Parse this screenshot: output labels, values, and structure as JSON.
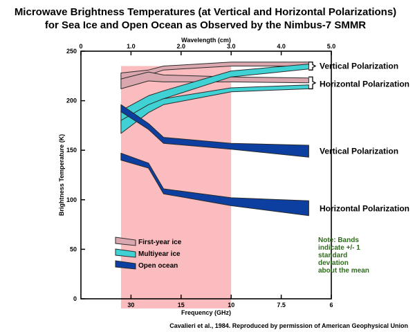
{
  "chart_data": {
    "type": "area",
    "title_lines": [
      "Microwave Brightness Temperatures (at Vertical and Horizontal Polarizations)",
      "for Sea Ice and Open Ocean as Observed by the Nimbus-7 SMMR"
    ],
    "xlabel_top": "Wavelength (cm)",
    "xlabel_bottom": "Frequency (GHz)",
    "ylabel": "Brightness Temperature (K)",
    "ylim": [
      0,
      250
    ],
    "wavelength_range_cm": [
      0,
      5
    ],
    "top_ticks": [
      "0",
      "1.0",
      "2.0",
      "3.0",
      "4.0",
      "5.0"
    ],
    "top_tick_values": [
      0,
      1,
      2,
      3,
      4,
      5
    ],
    "bottom_ticks": [
      "30",
      "15",
      "10",
      "7.5",
      "6"
    ],
    "bottom_tick_wavelengths": [
      1.0,
      2.0,
      3.0,
      4.0,
      5.0
    ],
    "y_ticks": [
      "0",
      "50",
      "100",
      "150",
      "200",
      "250"
    ],
    "y_tick_values": [
      0,
      50,
      100,
      150,
      200,
      250
    ],
    "highlight": {
      "from_wavelength": 0.8,
      "to_wavelength": 3.0,
      "color": "#fbbcbf"
    },
    "series": [
      {
        "name": "First-year ice",
        "polarization": "Vertical",
        "color": "#d9a7ad",
        "wavelength": [
          0.8,
          1.35,
          1.65,
          3.0,
          4.55
        ],
        "upper": [
          228,
          231,
          235,
          239,
          239
        ],
        "lower": [
          221,
          226,
          231,
          235,
          235
        ]
      },
      {
        "name": "First-year ice",
        "polarization": "Horizontal",
        "color": "#d9a7ad",
        "wavelength": [
          0.8,
          1.35,
          1.65,
          3.0,
          4.55
        ],
        "upper": [
          222,
          229,
          226,
          224,
          223
        ],
        "lower": [
          212,
          220,
          219,
          219,
          218
        ]
      },
      {
        "name": "Multiyear ice",
        "polarization": "Vertical",
        "color": "#3fd1d4",
        "wavelength": [
          0.8,
          1.35,
          1.65,
          3.0,
          4.55
        ],
        "upper": [
          190,
          205,
          210,
          230,
          237
        ],
        "lower": [
          177,
          195,
          202,
          224,
          232
        ]
      },
      {
        "name": "Multiyear ice",
        "polarization": "Horizontal",
        "color": "#3fd1d4",
        "wavelength": [
          0.8,
          1.35,
          1.65,
          3.0,
          4.55
        ],
        "upper": [
          180,
          196,
          202,
          213,
          216
        ],
        "lower": [
          167,
          188,
          196,
          209,
          212
        ]
      },
      {
        "name": "Open ocean",
        "polarization": "Vertical",
        "color": "#0d3fa0",
        "wavelength": [
          0.8,
          1.35,
          1.65,
          3.0,
          4.55
        ],
        "upper": [
          196,
          177,
          163,
          157,
          155
        ],
        "lower": [
          189,
          171,
          157,
          151,
          143
        ]
      },
      {
        "name": "Open ocean",
        "polarization": "Horizontal",
        "color": "#0d3fa0",
        "wavelength": [
          0.8,
          1.35,
          1.65,
          3.0,
          4.55
        ],
        "upper": [
          147,
          137,
          111,
          102,
          99
        ],
        "lower": [
          140,
          132,
          106,
          94,
          84
        ]
      }
    ],
    "annotations": {
      "right_labels": [
        {
          "text": "Vertical Polarization",
          "temperature": 235
        },
        {
          "text": "Horizontal Polarization",
          "temperature": 217
        },
        {
          "text": "Vertical Polarization",
          "temperature": 149
        },
        {
          "text": "Horizontal Polarization",
          "temperature": 91
        }
      ],
      "note_lines": [
        "Note: Bands",
        "indicate +/- 1",
        "standard",
        "deviation",
        "about the mean"
      ]
    },
    "legend": [
      {
        "label": "First-year ice",
        "color": "#d9a7ad"
      },
      {
        "label": "Multiyear ice",
        "color": "#3fd1d4"
      },
      {
        "label": "Open ocean",
        "color": "#0d3fa0"
      }
    ],
    "legend_placement": "lower-left",
    "grid": false
  },
  "credit": "Cavalieri et al., 1984. Reproduced by permission of American Geophysical Union"
}
